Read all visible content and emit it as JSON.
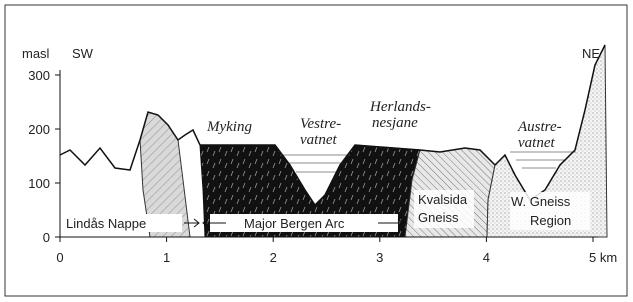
{
  "header": {
    "y_unit": "masl",
    "left_end": "SW",
    "right_end": "NE"
  },
  "axes": {
    "yticks": [
      0,
      100,
      200,
      300
    ],
    "xticks": [
      0,
      1,
      2,
      3,
      4,
      {
        "value": 5,
        "label": "5 km"
      }
    ]
  },
  "lakes": [
    {
      "label": [
        "Vestre-",
        "vatnet"
      ]
    },
    {
      "label": [
        "Herlands-",
        "nesjane"
      ]
    },
    {
      "label": [
        "Austre-",
        "vatnet"
      ]
    }
  ],
  "places": {
    "myking": "Myking"
  },
  "units": {
    "lindas": "Lindås Nappe",
    "bergen": "Major Bergen Arc",
    "kvalsida": [
      "Kvalsida",
      "Gneiss"
    ],
    "wgneiss": [
      "W. Gneiss",
      "Region"
    ]
  }
}
